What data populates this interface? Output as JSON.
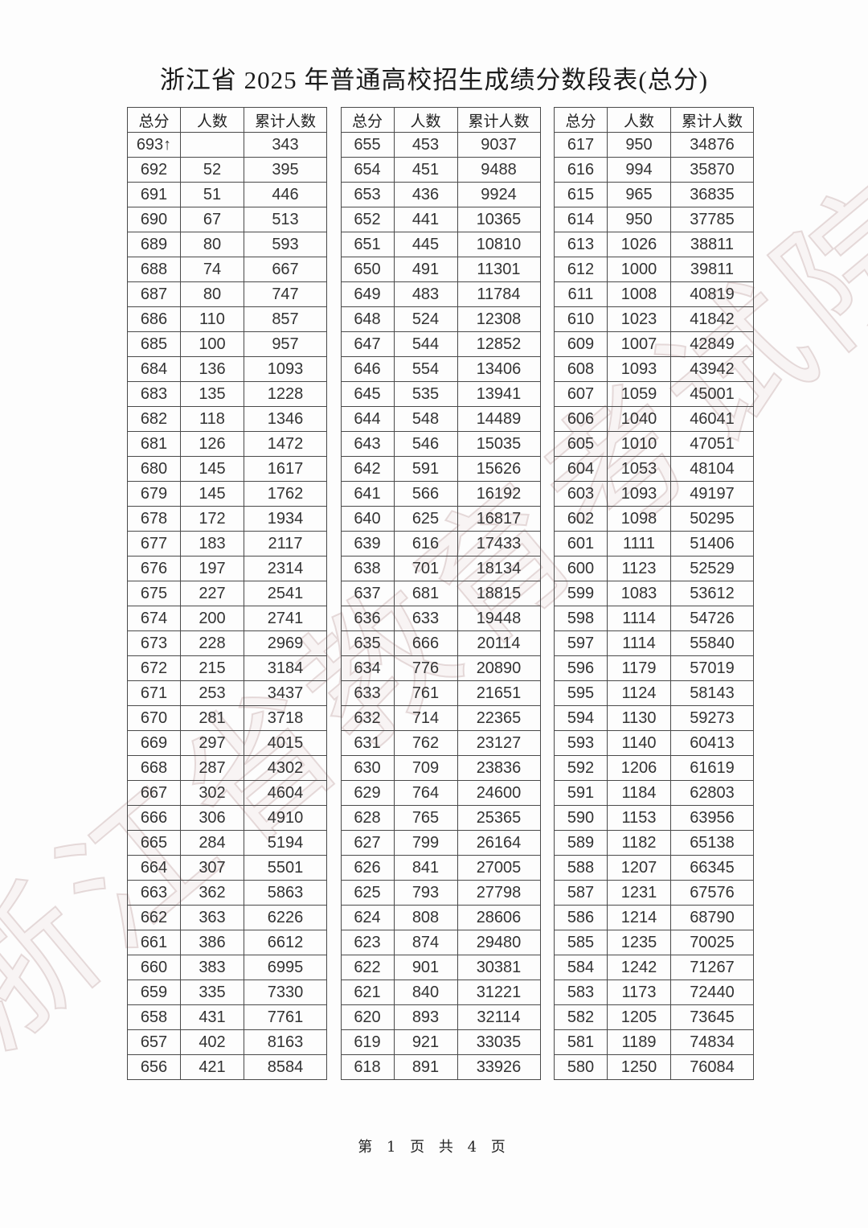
{
  "page": {
    "title": "浙江省 2025 年普通高校招生成绩分数段表(总分)",
    "footer": "第 1 页 共 4 页",
    "watermark": "浙江省教育考试院"
  },
  "table_headers": [
    "总分",
    "人数",
    "累计人数"
  ],
  "colors": {
    "border": "#4a4a4a",
    "text": "#333333",
    "watermark_tint": "#c6acac",
    "background": "#fdfdfd"
  },
  "tables": [
    {
      "rows": [
        [
          "693↑",
          "",
          "343"
        ],
        [
          "692",
          "52",
          "395"
        ],
        [
          "691",
          "51",
          "446"
        ],
        [
          "690",
          "67",
          "513"
        ],
        [
          "689",
          "80",
          "593"
        ],
        [
          "688",
          "74",
          "667"
        ],
        [
          "687",
          "80",
          "747"
        ],
        [
          "686",
          "110",
          "857"
        ],
        [
          "685",
          "100",
          "957"
        ],
        [
          "684",
          "136",
          "1093"
        ],
        [
          "683",
          "135",
          "1228"
        ],
        [
          "682",
          "118",
          "1346"
        ],
        [
          "681",
          "126",
          "1472"
        ],
        [
          "680",
          "145",
          "1617"
        ],
        [
          "679",
          "145",
          "1762"
        ],
        [
          "678",
          "172",
          "1934"
        ],
        [
          "677",
          "183",
          "2117"
        ],
        [
          "676",
          "197",
          "2314"
        ],
        [
          "675",
          "227",
          "2541"
        ],
        [
          "674",
          "200",
          "2741"
        ],
        [
          "673",
          "228",
          "2969"
        ],
        [
          "672",
          "215",
          "3184"
        ],
        [
          "671",
          "253",
          "3437"
        ],
        [
          "670",
          "281",
          "3718"
        ],
        [
          "669",
          "297",
          "4015"
        ],
        [
          "668",
          "287",
          "4302"
        ],
        [
          "667",
          "302",
          "4604"
        ],
        [
          "666",
          "306",
          "4910"
        ],
        [
          "665",
          "284",
          "5194"
        ],
        [
          "664",
          "307",
          "5501"
        ],
        [
          "663",
          "362",
          "5863"
        ],
        [
          "662",
          "363",
          "6226"
        ],
        [
          "661",
          "386",
          "6612"
        ],
        [
          "660",
          "383",
          "6995"
        ],
        [
          "659",
          "335",
          "7330"
        ],
        [
          "658",
          "431",
          "7761"
        ],
        [
          "657",
          "402",
          "8163"
        ],
        [
          "656",
          "421",
          "8584"
        ]
      ]
    },
    {
      "rows": [
        [
          "655",
          "453",
          "9037"
        ],
        [
          "654",
          "451",
          "9488"
        ],
        [
          "653",
          "436",
          "9924"
        ],
        [
          "652",
          "441",
          "10365"
        ],
        [
          "651",
          "445",
          "10810"
        ],
        [
          "650",
          "491",
          "11301"
        ],
        [
          "649",
          "483",
          "11784"
        ],
        [
          "648",
          "524",
          "12308"
        ],
        [
          "647",
          "544",
          "12852"
        ],
        [
          "646",
          "554",
          "13406"
        ],
        [
          "645",
          "535",
          "13941"
        ],
        [
          "644",
          "548",
          "14489"
        ],
        [
          "643",
          "546",
          "15035"
        ],
        [
          "642",
          "591",
          "15626"
        ],
        [
          "641",
          "566",
          "16192"
        ],
        [
          "640",
          "625",
          "16817"
        ],
        [
          "639",
          "616",
          "17433"
        ],
        [
          "638",
          "701",
          "18134"
        ],
        [
          "637",
          "681",
          "18815"
        ],
        [
          "636",
          "633",
          "19448"
        ],
        [
          "635",
          "666",
          "20114"
        ],
        [
          "634",
          "776",
          "20890"
        ],
        [
          "633",
          "761",
          "21651"
        ],
        [
          "632",
          "714",
          "22365"
        ],
        [
          "631",
          "762",
          "23127"
        ],
        [
          "630",
          "709",
          "23836"
        ],
        [
          "629",
          "764",
          "24600"
        ],
        [
          "628",
          "765",
          "25365"
        ],
        [
          "627",
          "799",
          "26164"
        ],
        [
          "626",
          "841",
          "27005"
        ],
        [
          "625",
          "793",
          "27798"
        ],
        [
          "624",
          "808",
          "28606"
        ],
        [
          "623",
          "874",
          "29480"
        ],
        [
          "622",
          "901",
          "30381"
        ],
        [
          "621",
          "840",
          "31221"
        ],
        [
          "620",
          "893",
          "32114"
        ],
        [
          "619",
          "921",
          "33035"
        ],
        [
          "618",
          "891",
          "33926"
        ]
      ]
    },
    {
      "rows": [
        [
          "617",
          "950",
          "34876"
        ],
        [
          "616",
          "994",
          "35870"
        ],
        [
          "615",
          "965",
          "36835"
        ],
        [
          "614",
          "950",
          "37785"
        ],
        [
          "613",
          "1026",
          "38811"
        ],
        [
          "612",
          "1000",
          "39811"
        ],
        [
          "611",
          "1008",
          "40819"
        ],
        [
          "610",
          "1023",
          "41842"
        ],
        [
          "609",
          "1007",
          "42849"
        ],
        [
          "608",
          "1093",
          "43942"
        ],
        [
          "607",
          "1059",
          "45001"
        ],
        [
          "606",
          "1040",
          "46041"
        ],
        [
          "605",
          "1010",
          "47051"
        ],
        [
          "604",
          "1053",
          "48104"
        ],
        [
          "603",
          "1093",
          "49197"
        ],
        [
          "602",
          "1098",
          "50295"
        ],
        [
          "601",
          "1111",
          "51406"
        ],
        [
          "600",
          "1123",
          "52529"
        ],
        [
          "599",
          "1083",
          "53612"
        ],
        [
          "598",
          "1114",
          "54726"
        ],
        [
          "597",
          "1114",
          "55840"
        ],
        [
          "596",
          "1179",
          "57019"
        ],
        [
          "595",
          "1124",
          "58143"
        ],
        [
          "594",
          "1130",
          "59273"
        ],
        [
          "593",
          "1140",
          "60413"
        ],
        [
          "592",
          "1206",
          "61619"
        ],
        [
          "591",
          "1184",
          "62803"
        ],
        [
          "590",
          "1153",
          "63956"
        ],
        [
          "589",
          "1182",
          "65138"
        ],
        [
          "588",
          "1207",
          "66345"
        ],
        [
          "587",
          "1231",
          "67576"
        ],
        [
          "586",
          "1214",
          "68790"
        ],
        [
          "585",
          "1235",
          "70025"
        ],
        [
          "584",
          "1242",
          "71267"
        ],
        [
          "583",
          "1173",
          "72440"
        ],
        [
          "582",
          "1205",
          "73645"
        ],
        [
          "581",
          "1189",
          "74834"
        ],
        [
          "580",
          "1250",
          "76084"
        ]
      ]
    }
  ]
}
